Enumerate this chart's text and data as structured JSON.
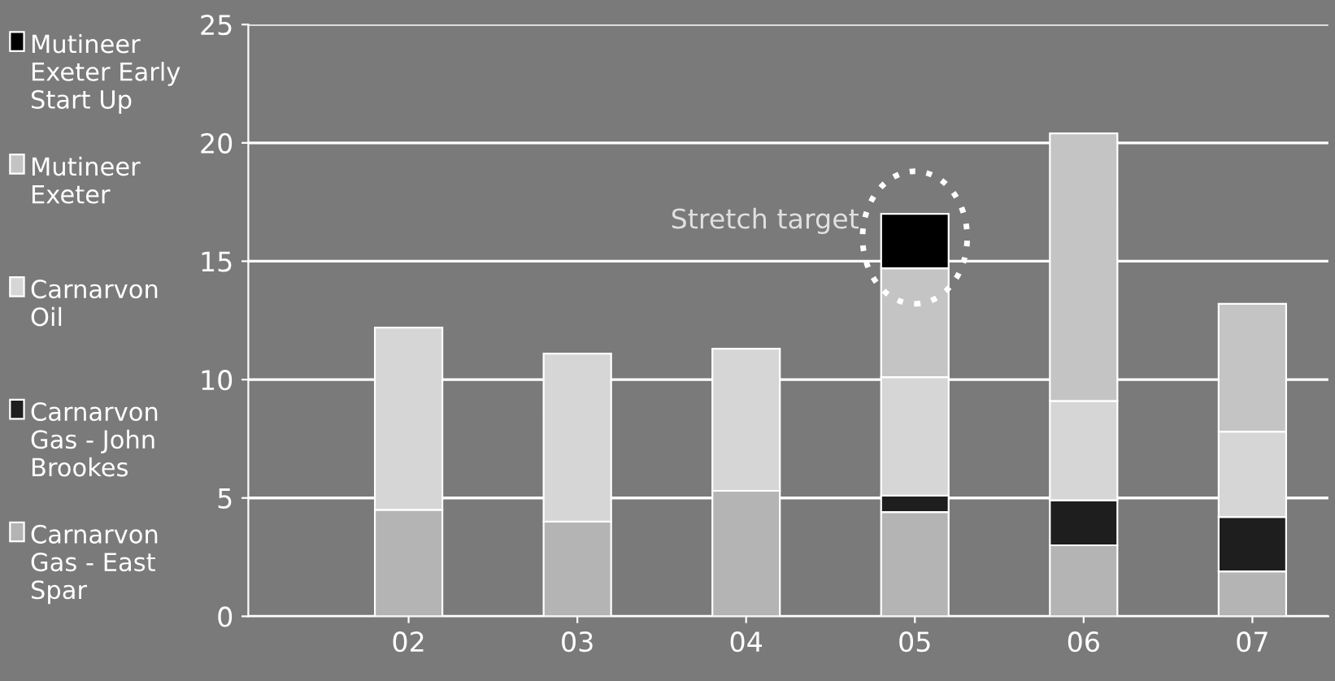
{
  "chart_data": {
    "type": "bar",
    "stacked": true,
    "categories": [
      "02",
      "03",
      "04",
      "05",
      "06",
      "07"
    ],
    "series": [
      {
        "name": "Carnarvon Gas - East Spar",
        "color": "#b4b4b4",
        "values": [
          4.5,
          4.0,
          5.3,
          4.4,
          3.0,
          1.9
        ]
      },
      {
        "name": "Carnarvon Gas - John Brookes",
        "color": "#1e1e1e",
        "values": [
          null,
          null,
          null,
          0.7,
          1.9,
          2.3
        ]
      },
      {
        "name": "Carnarvon Oil",
        "color": "#d6d6d6",
        "values": [
          7.7,
          7.1,
          6.0,
          5.0,
          4.2,
          3.6
        ]
      },
      {
        "name": "Mutineer Exeter",
        "color": "#c4c4c4",
        "values": [
          null,
          null,
          null,
          4.6,
          11.3,
          5.4
        ]
      },
      {
        "name": "Mutineer Exeter Early Start Up",
        "color": "#000000",
        "values": [
          null,
          null,
          null,
          2.3,
          null,
          null
        ]
      }
    ],
    "ylim": [
      0,
      25
    ],
    "yticks": [
      0,
      5,
      10,
      15,
      20,
      25
    ],
    "grid": "y",
    "legend": "left",
    "annotations": [
      {
        "text": "Stretch target",
        "x": "05",
        "y": 17.0
      }
    ]
  }
}
